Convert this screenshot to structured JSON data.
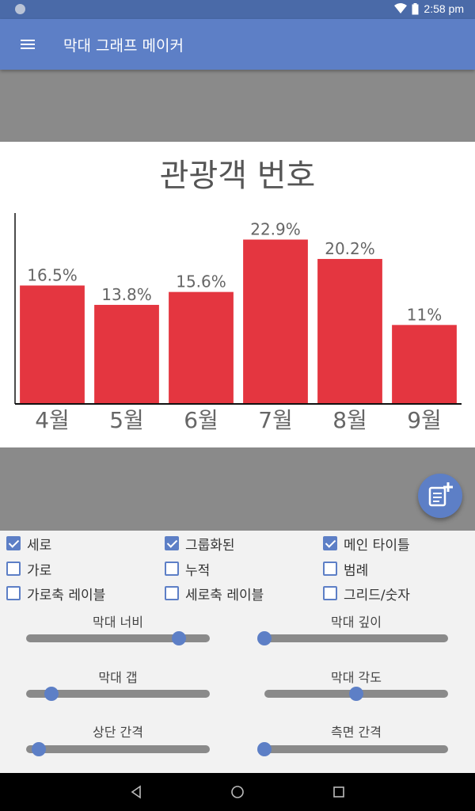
{
  "status": {
    "time": "2:58 pm"
  },
  "app": {
    "title": "막대 그래프 메이커"
  },
  "chart_data": {
    "type": "bar",
    "title": "관광객 번호",
    "categories": [
      "4월",
      "5월",
      "6월",
      "7월",
      "8월",
      "9월"
    ],
    "values": [
      16.5,
      13.8,
      15.6,
      22.9,
      20.2,
      11
    ],
    "value_labels": [
      "16.5%",
      "13.8%",
      "15.6%",
      "22.9%",
      "20.2%",
      "11%"
    ],
    "ylim": [
      0,
      25
    ],
    "bar_color": "#e43640",
    "grid": false,
    "legend": false
  },
  "options": {
    "vertical": {
      "label": "세로",
      "checked": true
    },
    "grouped": {
      "label": "그룹화된",
      "checked": true
    },
    "main_title": {
      "label": "메인 타이틀",
      "checked": true
    },
    "horizontal": {
      "label": "가로",
      "checked": false
    },
    "stacked": {
      "label": "누적",
      "checked": false
    },
    "legend": {
      "label": "범례",
      "checked": false
    },
    "x_axis_label": {
      "label": "가로축 레이블",
      "checked": false
    },
    "y_axis_label": {
      "label": "세로축 레이블",
      "checked": false
    },
    "grid_numbers": {
      "label": "그리드/숫자",
      "checked": false
    }
  },
  "sliders": {
    "bar_width": {
      "label": "막대 너비",
      "value": 0.83
    },
    "bar_depth": {
      "label": "막대 깊이",
      "value": 0.0
    },
    "bar_gap": {
      "label": "막대 갭",
      "value": 0.14
    },
    "bar_angle": {
      "label": "막대 각도",
      "value": 0.5
    },
    "top_spacing": {
      "label": "상단 간격",
      "value": 0.07
    },
    "side_spacing": {
      "label": "측면 간격",
      "value": 0.0
    }
  },
  "colors": {
    "accent": "#5d7fc6",
    "status_bar": "#4a6aa8",
    "background": "#8a8a8a"
  }
}
